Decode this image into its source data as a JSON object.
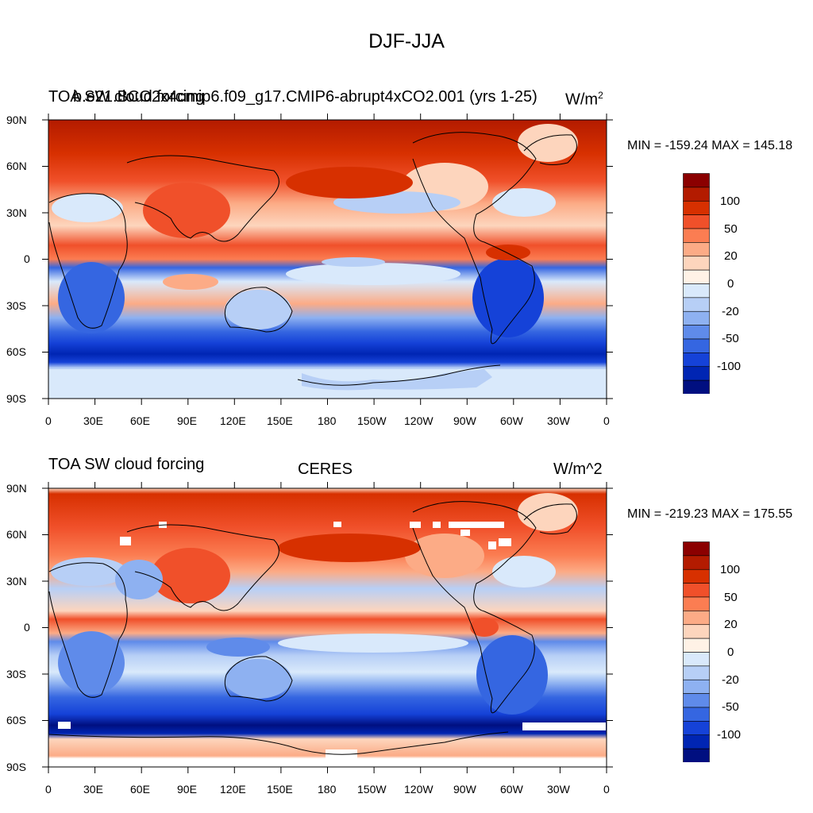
{
  "main_title": "DJF-JJA",
  "panels": [
    {
      "title_left": "TOA SW cloud forcing",
      "title_center": "b.e21.BCO2x4cmip6.f09_g17.CMIP6-abrupt4xCO2.001 (yrs 1-25)",
      "units": "W/m",
      "units_exp": "2",
      "minmax": "MIN = -159.24 MAX = 145.18"
    },
    {
      "title_left": "TOA SW cloud forcing",
      "title_center": "CERES",
      "units": "W/m^2",
      "minmax": "MIN = -219.23 MAX = 175.55"
    }
  ],
  "lat_ticks": [
    "90N",
    "60N",
    "30N",
    "0",
    "30S",
    "60S",
    "90S"
  ],
  "lon_ticks": [
    "0",
    "30E",
    "60E",
    "90E",
    "120E",
    "150E",
    "180",
    "150W",
    "120W",
    "90W",
    "60W",
    "30W",
    "0"
  ],
  "colorbar": {
    "labels": [
      "100",
      "50",
      "20",
      "0",
      "-20",
      "-50",
      "-100"
    ],
    "colors": [
      "#8b0000",
      "#b31b00",
      "#d73000",
      "#f0502a",
      "#fb7d52",
      "#fcab86",
      "#fdd5bd",
      "#fff2e6",
      "#d9e9fb",
      "#b7cff6",
      "#8eb1f1",
      "#5f8bea",
      "#3566e1",
      "#1542d8",
      "#0025b3",
      "#000f80"
    ]
  }
}
